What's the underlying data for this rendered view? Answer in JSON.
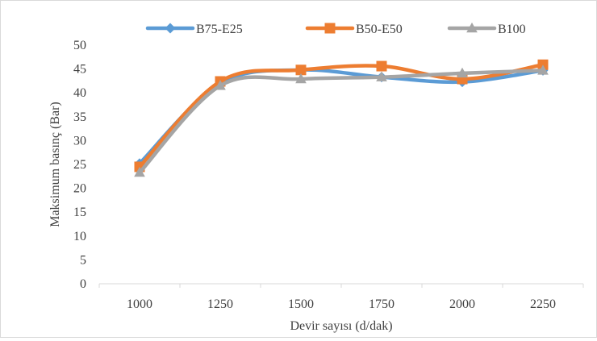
{
  "chart_data": {
    "type": "line",
    "title": "",
    "xlabel": "Devir sayısı (d/dak)",
    "ylabel": "Maksimum basınç (Bar)",
    "categories": [
      "1000",
      "1250",
      "1500",
      "1750",
      "2000",
      "2250"
    ],
    "ylim": [
      0,
      50
    ],
    "yticks": [
      0,
      5,
      10,
      15,
      20,
      25,
      30,
      35,
      40,
      45,
      50
    ],
    "grid": false,
    "smooth": true,
    "legend_position": "top",
    "series": [
      {
        "name": "B75-E25",
        "values": [
          25.2,
          42.0,
          44.8,
          43.3,
          42.3,
          44.7
        ],
        "color": "#5B9BD5",
        "marker": "diamond"
      },
      {
        "name": "B50-E50",
        "values": [
          24.5,
          42.4,
          44.8,
          45.6,
          42.9,
          45.9
        ],
        "color": "#ED7D31",
        "marker": "square"
      },
      {
        "name": "B100",
        "values": [
          23.3,
          41.5,
          42.9,
          43.3,
          44.1,
          44.7
        ],
        "color": "#A5A5A5",
        "marker": "triangle"
      }
    ]
  }
}
